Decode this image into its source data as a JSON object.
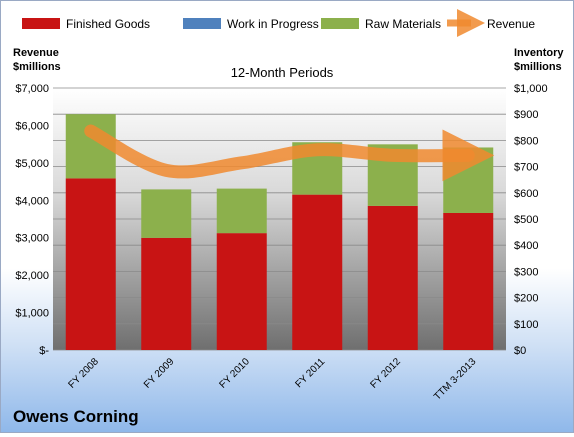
{
  "chart_data": {
    "type": "bar",
    "subtitle": "12-Month Periods",
    "company": "Owens Corning",
    "left_axis": {
      "label_line1": "Revenue",
      "label_line2": "$millions",
      "range": [
        0,
        7000
      ],
      "ticks": [
        "$-",
        "$1,000",
        "$2,000",
        "$3,000",
        "$4,000",
        "$5,000",
        "$6,000",
        "$7,000"
      ]
    },
    "right_axis": {
      "label_line1": "Inventory",
      "label_line2": "$millions",
      "range": [
        0,
        1000
      ],
      "ticks": [
        "$0",
        "$100",
        "$200",
        "$300",
        "$400",
        "$500",
        "$600",
        "$700",
        "$800",
        "$900",
        "$1,000"
      ]
    },
    "categories": [
      "FY 2008",
      "FY 2009",
      "FY 2010",
      "FY 2011",
      "FY 2012",
      "TTM 3-2013"
    ],
    "series": [
      {
        "name": "Finished Goods",
        "kind": "stacked-bar",
        "axis": "right",
        "color": "#c81414",
        "values": [
          655,
          428,
          446,
          593,
          550,
          523
        ]
      },
      {
        "name": "Work in Progress",
        "kind": "stacked-bar",
        "axis": "right",
        "color": "#4f81bd",
        "values": [
          0,
          0,
          0,
          0,
          0,
          0
        ]
      },
      {
        "name": "Raw Materials",
        "kind": "stacked-bar",
        "axis": "right",
        "color": "#8cb04c",
        "values": [
          245,
          185,
          170,
          200,
          235,
          250
        ]
      },
      {
        "name": "Revenue",
        "kind": "line",
        "axis": "left",
        "color": "#f0892f",
        "values": [
          5850,
          4800,
          5000,
          5350,
          5200,
          5200
        ]
      }
    ],
    "grid": true,
    "legend_position": "top"
  }
}
